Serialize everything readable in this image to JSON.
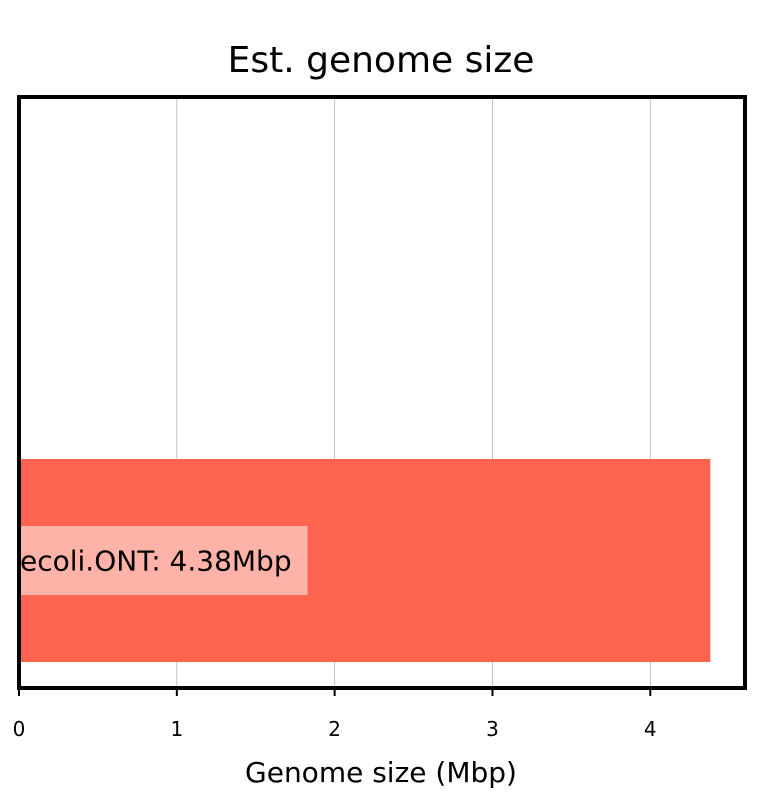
{
  "chart_data": {
    "type": "bar",
    "orientation": "horizontal",
    "title": "Est. genome size",
    "xlabel": "Genome size (Mbp)",
    "ylabel": "",
    "xlim": [
      0,
      4.6
    ],
    "xticks": [
      "0",
      "1",
      "2",
      "3",
      "4"
    ],
    "grid": "vertical",
    "categories": [
      "ecoli.ONT"
    ],
    "values": [
      4.38
    ],
    "bar_labels": [
      "ecoli.ONT: 4.38Mbp"
    ],
    "bar_color": "#fc6450",
    "label_box_color": "#ffffff"
  }
}
